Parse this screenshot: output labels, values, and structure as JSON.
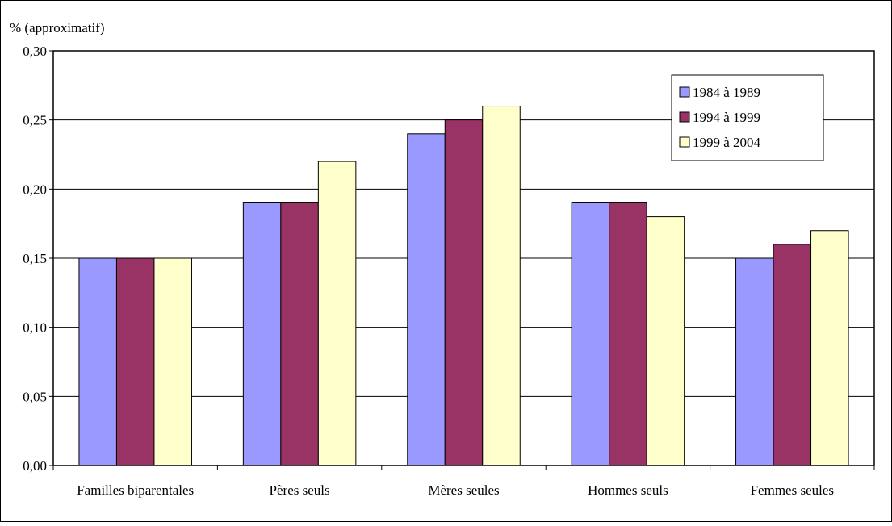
{
  "chart_data": {
    "type": "bar",
    "ylabel": "% (approximatif)",
    "ylim": [
      0,
      0.3
    ],
    "yticks": [
      "0,00",
      "0,05",
      "0,10",
      "0,15",
      "0,20",
      "0,25",
      "0,30"
    ],
    "grid": true,
    "legend_position": "top-right",
    "categories": [
      "Familles biparentales",
      "Pères seuls",
      "Mères seules",
      "Hommes seuls",
      "Femmes seules"
    ],
    "series": [
      {
        "name": "1984 à 1989",
        "color": "#9999ff",
        "values": [
          0.15,
          0.19,
          0.24,
          0.19,
          0.15
        ]
      },
      {
        "name": "1994 à 1999",
        "color": "#993366",
        "values": [
          0.15,
          0.19,
          0.25,
          0.19,
          0.16
        ]
      },
      {
        "name": "1999 à 2004",
        "color": "#ffffcc",
        "values": [
          0.15,
          0.22,
          0.26,
          0.18,
          0.17
        ]
      }
    ]
  }
}
